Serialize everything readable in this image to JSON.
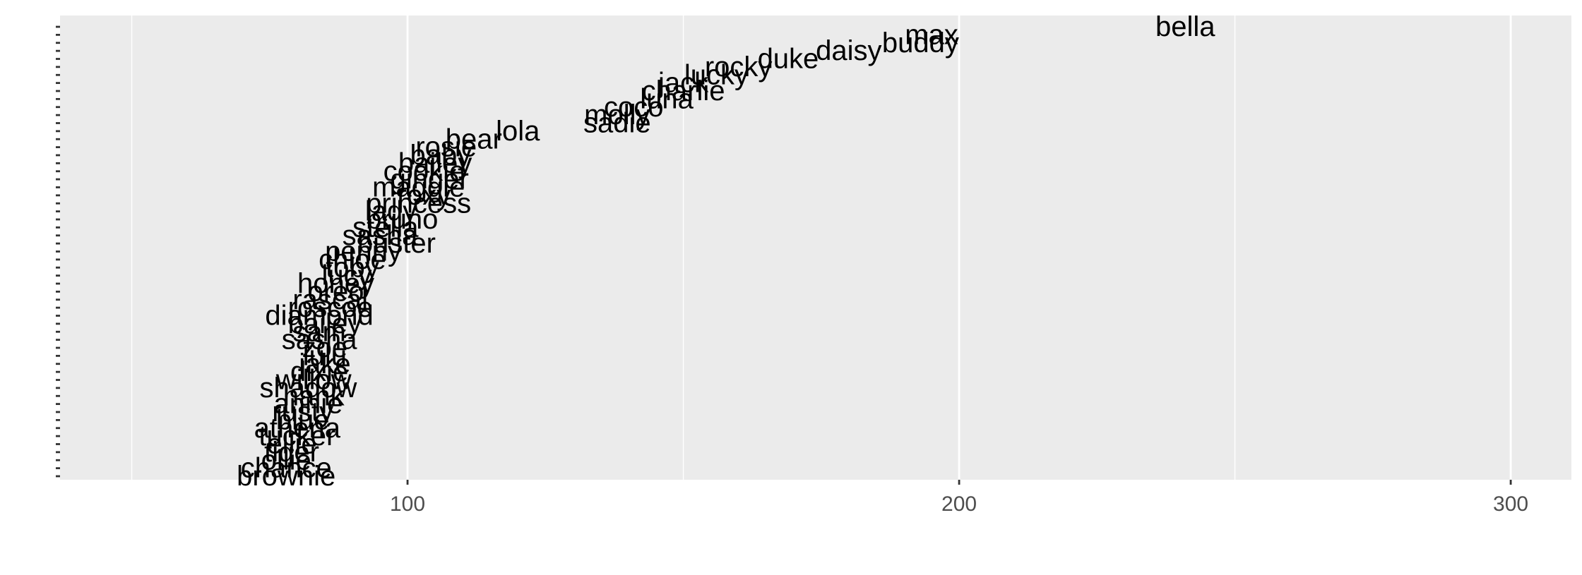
{
  "colors": {
    "panel_background": "#EBEBEB",
    "grid_major": "#FFFFFF",
    "grid_minor": "#F5F5F5",
    "tick_label": "#4D4D4D",
    "text": "#000000",
    "y_ticks": "#333333"
  },
  "chart_data": {
    "type": "scatter",
    "title": "",
    "xlabel": "",
    "ylabel": "",
    "xlim": [
      37,
      311
    ],
    "x_ticks": [
      100,
      200,
      300
    ],
    "x_tick_labels": [
      "100",
      "200",
      "300"
    ],
    "x_minor_ticks": [
      50,
      150,
      250
    ],
    "grid": true,
    "y_tick_labels_shown": false,
    "points": [
      {
        "label": "bella",
        "x": 241,
        "rank": 1
      },
      {
        "label": "max",
        "x": 195,
        "rank": 2
      },
      {
        "label": "buddy",
        "x": 193,
        "rank": 3
      },
      {
        "label": "daisy",
        "x": 180,
        "rank": 4
      },
      {
        "label": "duke",
        "x": 169,
        "rank": 5
      },
      {
        "label": "rocky",
        "x": 160,
        "rank": 6
      },
      {
        "label": "lucky",
        "x": 156,
        "rank": 7
      },
      {
        "label": "jack",
        "x": 150,
        "rank": 8
      },
      {
        "label": "charlie",
        "x": 150,
        "rank": 9
      },
      {
        "label": "luna",
        "x": 147,
        "rank": 10
      },
      {
        "label": "coco",
        "x": 141,
        "rank": 11
      },
      {
        "label": "molly",
        "x": 138,
        "rank": 12
      },
      {
        "label": "sadie",
        "x": 138,
        "rank": 13
      },
      {
        "label": "lola",
        "x": 120,
        "rank": 14
      },
      {
        "label": "bear",
        "x": 112,
        "rank": 15
      },
      {
        "label": "rosie",
        "x": 107,
        "rank": 16
      },
      {
        "label": "baby",
        "x": 106,
        "rank": 17
      },
      {
        "label": "bailey",
        "x": 105,
        "rank": 18
      },
      {
        "label": "cookie",
        "x": 103,
        "rank": 19
      },
      {
        "label": "ginger",
        "x": 104,
        "rank": 20
      },
      {
        "label": "maggie",
        "x": 102,
        "rank": 21
      },
      {
        "label": "roxy",
        "x": 103,
        "rank": 22
      },
      {
        "label": "princess",
        "x": 102,
        "rank": 23
      },
      {
        "label": "lady",
        "x": 97,
        "rank": 24
      },
      {
        "label": "bruno",
        "x": 99,
        "rank": 25
      },
      {
        "label": "stella",
        "x": 96,
        "rank": 26
      },
      {
        "label": "sasha",
        "x": 95,
        "rank": 27
      },
      {
        "label": "buster",
        "x": 98,
        "rank": 28
      },
      {
        "label": "penny",
        "x": 92,
        "rank": 29
      },
      {
        "label": "chloe",
        "x": 90,
        "rank": 30
      },
      {
        "label": "toby",
        "x": 90,
        "rank": 31
      },
      {
        "label": "lucy",
        "x": 89,
        "rank": 32
      },
      {
        "label": "honey",
        "x": 87,
        "rank": 33
      },
      {
        "label": "oreo",
        "x": 87,
        "rank": 34
      },
      {
        "label": "rascal",
        "x": 86,
        "rank": 35
      },
      {
        "label": "roscoe",
        "x": 86,
        "rank": 36
      },
      {
        "label": "diamond",
        "x": 84,
        "rank": 37
      },
      {
        "label": "bailey",
        "x": 85,
        "rank": 38
      },
      {
        "label": "sam",
        "x": 84,
        "rank": 39
      },
      {
        "label": "sasha",
        "x": 84,
        "rank": 40
      },
      {
        "label": "zoe",
        "x": 85,
        "rank": 41
      },
      {
        "label": "lulu",
        "x": 85,
        "rank": 42
      },
      {
        "label": "jake",
        "x": 85,
        "rank": 43
      },
      {
        "label": "dixie",
        "x": 84,
        "rank": 44
      },
      {
        "label": "willow",
        "x": 83,
        "rank": 45
      },
      {
        "label": "shadow",
        "x": 82,
        "rank": 46
      },
      {
        "label": "hank",
        "x": 83,
        "rank": 47
      },
      {
        "label": "annie",
        "x": 82,
        "rank": 48
      },
      {
        "label": "rusty",
        "x": 81,
        "rank": 49
      },
      {
        "label": "blue",
        "x": 81,
        "rank": 50
      },
      {
        "label": "athena",
        "x": 80,
        "rank": 51
      },
      {
        "label": "tucker",
        "x": 80,
        "rank": 52
      },
      {
        "label": "ellie",
        "x": 79,
        "rank": 53
      },
      {
        "label": "tiger",
        "x": 79,
        "rank": 54
      },
      {
        "label": "ollie",
        "x": 78,
        "rank": 55
      },
      {
        "label": "chance",
        "x": 78,
        "rank": 56
      },
      {
        "label": "brownie",
        "x": 78,
        "rank": 57
      }
    ]
  }
}
